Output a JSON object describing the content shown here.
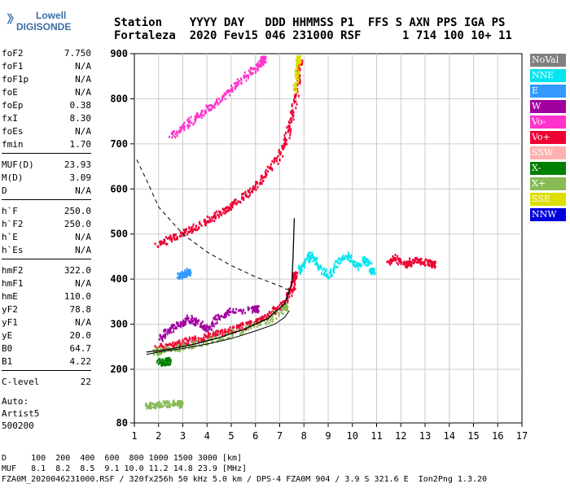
{
  "logo": {
    "top": "Lowell",
    "bottom": "DIGISONDE"
  },
  "header": {
    "line1": "Station    YYYY DAY   DDD HHMMSS P1  FFS S AXN PPS IGA PS",
    "line2": "Fortaleza  2020 Fev15 046 231000 RSF      1 714 100 10+ 11"
  },
  "params": {
    "group1": [
      {
        "k": "foF2",
        "v": "7.750"
      },
      {
        "k": "foF1",
        "v": "N/A"
      },
      {
        "k": "foF1p",
        "v": "N/A"
      },
      {
        "k": "foE",
        "v": "N/A"
      },
      {
        "k": "foEp",
        "v": "0.38"
      },
      {
        "k": "fxI",
        "v": "8.30"
      },
      {
        "k": "foEs",
        "v": "N/A"
      },
      {
        "k": "fmin",
        "v": "1.70"
      }
    ],
    "group2": [
      {
        "k": "MUF(D)",
        "v": "23.93"
      },
      {
        "k": "M(D)",
        "v": "3.09"
      },
      {
        "k": "D",
        "v": "N/A"
      }
    ],
    "group3": [
      {
        "k": "h`F",
        "v": "250.0"
      },
      {
        "k": "h`F2",
        "v": "250.0"
      },
      {
        "k": "h`E",
        "v": "N/A"
      },
      {
        "k": "h`Es",
        "v": "N/A"
      }
    ],
    "group4": [
      {
        "k": "hmF2",
        "v": "322.0"
      },
      {
        "k": "hmF1",
        "v": "N/A"
      },
      {
        "k": "hmE",
        "v": "110.0"
      },
      {
        "k": "yF2",
        "v": "78.8"
      },
      {
        "k": "yF1",
        "v": "N/A"
      },
      {
        "k": "yE",
        "v": "20.0"
      },
      {
        "k": "B0",
        "v": "64.7"
      },
      {
        "k": "B1",
        "v": "4.22"
      }
    ],
    "group5": [
      {
        "k": "C-level",
        "v": "22"
      }
    ],
    "auto": [
      "Auto:",
      "Artist5",
      "500200"
    ]
  },
  "footer": {
    "d_line": "D     100  200  400  600  800 1000 1500 3000 [km]",
    "muf_line": "MUF   8.1  8.2  8.5  9.1 10.0 11.2 14.8 23.9 [MHz]",
    "file_line": "FZA0M_2020046231000.RSF / 320fx256h 50 kHz 5.0 km / DPS-4 FZA0M 904 / 3.9 S 321.6 E  Ion2Png 1.3.20"
  },
  "legend": [
    {
      "label": "NoVal",
      "color": "#808080"
    },
    {
      "label": "NNE",
      "color": "#00e5ee"
    },
    {
      "label": "E",
      "color": "#3399ff"
    },
    {
      "label": "W",
      "color": "#a000a0"
    },
    {
      "label": "Vo-",
      "color": "#ff33cc"
    },
    {
      "label": "Vo+",
      "color": "#ee0033"
    },
    {
      "label": "SSW",
      "color": "#ffb0b0"
    },
    {
      "label": "X-",
      "color": "#008000"
    },
    {
      "label": "X+",
      "color": "#88bb55"
    },
    {
      "label": "SSE",
      "color": "#dddd00"
    },
    {
      "label": "NNW",
      "color": "#0000dd"
    }
  ],
  "chart_data": {
    "type": "scatter",
    "xlim": [
      1,
      17
    ],
    "ylim": [
      80,
      900
    ],
    "xticks": [
      1,
      2,
      3,
      4,
      5,
      6,
      7,
      8,
      9,
      10,
      11,
      12,
      13,
      14,
      15,
      16,
      17
    ],
    "yticks": [
      80,
      200,
      300,
      400,
      500,
      600,
      700,
      800,
      900
    ],
    "grid": true,
    "series": [
      {
        "name": "Vo+",
        "color": "#ee0033",
        "points": [
          [
            1.9,
            250
          ],
          [
            2.5,
            255
          ],
          [
            3,
            262
          ],
          [
            3.5,
            268
          ],
          [
            4,
            275
          ],
          [
            4.5,
            282
          ],
          [
            5,
            290
          ],
          [
            5.5,
            298
          ],
          [
            6,
            308
          ],
          [
            6.5,
            322
          ],
          [
            7,
            340
          ],
          [
            7.3,
            360
          ],
          [
            7.5,
            385
          ],
          [
            7.6,
            410
          ]
        ]
      },
      {
        "name": "Vo+ (2F)",
        "color": "#ee0033",
        "points": [
          [
            1.9,
            478
          ],
          [
            2.5,
            492
          ],
          [
            3,
            505
          ],
          [
            3.5,
            518
          ],
          [
            4,
            532
          ],
          [
            4.5,
            548
          ],
          [
            5,
            565
          ],
          [
            5.5,
            585
          ],
          [
            6,
            610
          ],
          [
            6.5,
            640
          ],
          [
            7,
            680
          ],
          [
            7.3,
            720
          ],
          [
            7.5,
            770
          ],
          [
            7.7,
            830
          ],
          [
            7.8,
            880
          ]
        ]
      },
      {
        "name": "W",
        "color": "#a000a0",
        "points": [
          [
            2,
            270
          ],
          [
            2.4,
            290
          ],
          [
            2.8,
            300
          ],
          [
            3.2,
            315
          ],
          [
            3.6,
            305
          ],
          [
            4,
            290
          ],
          [
            4.5,
            320
          ],
          [
            5,
            330
          ],
          [
            6,
            335
          ]
        ]
      },
      {
        "name": "Vo- (3F)",
        "color": "#ff33cc",
        "points": [
          [
            2.5,
            720
          ],
          [
            3,
            740
          ],
          [
            3.5,
            760
          ],
          [
            4,
            780
          ],
          [
            4.5,
            800
          ],
          [
            5,
            825
          ],
          [
            5.5,
            850
          ],
          [
            6,
            870
          ],
          [
            6.3,
            890
          ]
        ]
      },
      {
        "name": "NNE",
        "color": "#00e5ee",
        "points": [
          [
            7.8,
            420
          ],
          [
            8,
            440
          ],
          [
            8.3,
            455
          ],
          [
            8.6,
            430
          ],
          [
            9,
            410
          ],
          [
            9.4,
            440
          ],
          [
            9.8,
            455
          ],
          [
            10.2,
            430
          ],
          [
            10.5,
            450
          ],
          [
            10.8,
            420
          ]
        ]
      },
      {
        "name": "Vo+ (oblique)",
        "color": "#ee0033",
        "points": [
          [
            11.5,
            440
          ],
          [
            11.8,
            450
          ],
          [
            12.2,
            430
          ],
          [
            12.5,
            445
          ],
          [
            13,
            440
          ],
          [
            13.3,
            435
          ]
        ]
      },
      {
        "name": "X+",
        "color": "#88bb55",
        "points": [
          [
            1.8,
            240
          ],
          [
            2.2,
            245
          ],
          [
            2.8,
            250
          ],
          [
            3.5,
            258
          ],
          [
            4.5,
            272
          ],
          [
            5.5,
            290
          ],
          [
            6.5,
            310
          ],
          [
            7.2,
            340
          ]
        ]
      },
      {
        "name": "E",
        "color": "#3399ff",
        "points": [
          [
            2.8,
            408
          ],
          [
            3,
            412
          ],
          [
            3.2,
            418
          ]
        ]
      },
      {
        "name": "X- (low)",
        "color": "#008000",
        "points": [
          [
            2,
            218
          ],
          [
            2.2,
            218
          ],
          [
            2.4,
            220
          ]
        ]
      },
      {
        "name": "X- (low2)",
        "color": "#88bb55",
        "points": [
          [
            1.5,
            122
          ],
          [
            1.8,
            122
          ],
          [
            2.2,
            124
          ],
          [
            2.6,
            126
          ],
          [
            2.9,
            124
          ]
        ]
      },
      {
        "name": "SSE",
        "color": "#dddd00",
        "points": [
          [
            7.6,
            820
          ],
          [
            7.7,
            860
          ],
          [
            7.75,
            890
          ]
        ]
      }
    ],
    "profile_curve": [
      [
        1.5,
        233
      ],
      [
        2,
        238
      ],
      [
        3,
        246
      ],
      [
        4,
        256
      ],
      [
        5,
        268
      ],
      [
        6,
        285
      ],
      [
        6.8,
        300
      ],
      [
        7.2,
        315
      ],
      [
        7.4,
        330
      ]
    ],
    "trace_curve": [
      [
        1.5,
        238
      ],
      [
        2.5,
        245
      ],
      [
        3.5,
        256
      ],
      [
        4.5,
        270
      ],
      [
        5.5,
        288
      ],
      [
        6.5,
        312
      ],
      [
        7.2,
        345
      ],
      [
        7.5,
        390
      ],
      [
        7.55,
        450
      ],
      [
        7.6,
        535
      ]
    ],
    "muf_curve": [
      [
        1.1,
        665
      ],
      [
        1.5,
        620
      ],
      [
        2,
        560
      ],
      [
        3,
        500
      ],
      [
        4,
        460
      ],
      [
        5,
        430
      ],
      [
        6,
        405
      ],
      [
        7,
        385
      ],
      [
        7.5,
        372
      ]
    ]
  }
}
